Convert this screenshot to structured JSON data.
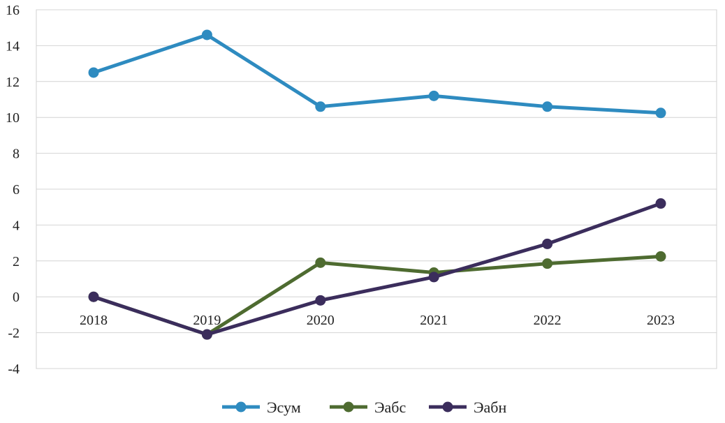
{
  "chart_data": {
    "type": "line",
    "x": [
      "2018",
      "2019",
      "2020",
      "2021",
      "2022",
      "2023"
    ],
    "ylim": [
      -4,
      16
    ],
    "yticks": [
      -4,
      -2,
      0,
      2,
      4,
      6,
      8,
      10,
      12,
      14,
      16
    ],
    "grid": true,
    "legend_position": "bottom",
    "series": [
      {
        "name": "Эсум",
        "color": "#2e8bc0",
        "values": [
          12.5,
          14.6,
          10.6,
          11.2,
          10.6,
          10.25
        ]
      },
      {
        "name": "Эабс",
        "color": "#4e6b30",
        "values": [
          0.0,
          -2.1,
          1.9,
          1.35,
          1.85,
          2.25
        ]
      },
      {
        "name": "Эабн",
        "color": "#3b2d5c",
        "values": [
          0.0,
          -2.1,
          -0.2,
          1.1,
          2.95,
          5.2
        ]
      }
    ]
  }
}
